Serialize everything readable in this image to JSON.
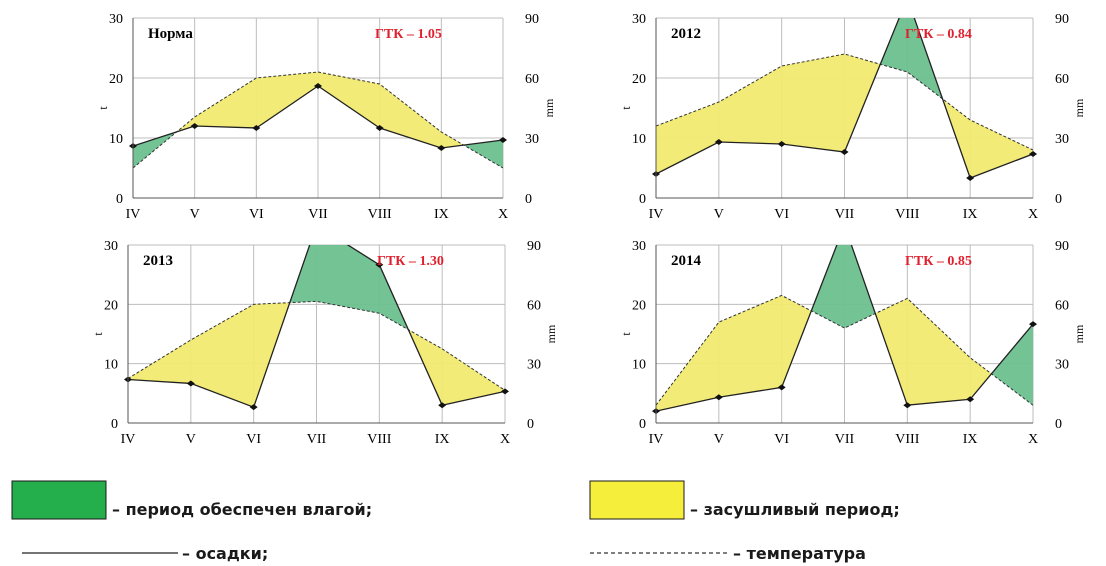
{
  "chart_data": [
    {
      "type": "area",
      "title": "Норма",
      "gtk_label": "ГТК – 1.05",
      "categories": [
        "IV",
        "V",
        "VI",
        "VII",
        "VIII",
        "IX",
        "X"
      ],
      "ylabel_left": "t",
      "ylabel_right": "mm",
      "ylim_left": [
        0,
        30
      ],
      "ylim_right": [
        0,
        90
      ],
      "yticks_left": [
        "0",
        "10",
        "20",
        "30"
      ],
      "yticks_right": [
        "0",
        "30",
        "60",
        "90"
      ],
      "series": [
        {
          "name": "осадки",
          "axis": "right",
          "values": [
            26,
            36,
            35,
            56,
            35,
            25,
            29
          ]
        },
        {
          "name": "температура",
          "axis": "left",
          "values": [
            5,
            13.5,
            20,
            21,
            19,
            11,
            5
          ]
        }
      ]
    },
    {
      "type": "area",
      "title": "2012",
      "gtk_label": "ГТК – 0.84",
      "categories": [
        "IV",
        "V",
        "VI",
        "VII",
        "VIII",
        "IX",
        "X"
      ],
      "ylabel_left": "t",
      "ylabel_right": "mm",
      "ylim_left": [
        0,
        30
      ],
      "ylim_right": [
        0,
        90
      ],
      "yticks_left": [
        "0",
        "10",
        "20",
        "30"
      ],
      "yticks_right": [
        "0",
        "30",
        "60",
        "90"
      ],
      "series": [
        {
          "name": "осадки",
          "axis": "right",
          "values": [
            12,
            28,
            27,
            23,
            100,
            10,
            22
          ]
        },
        {
          "name": "температура",
          "axis": "left",
          "values": [
            12,
            16,
            22,
            24,
            21,
            13,
            8
          ]
        }
      ]
    },
    {
      "type": "area",
      "title": "2013",
      "gtk_label": "ГТК – 1.30",
      "categories": [
        "IV",
        "V",
        "VI",
        "VII",
        "VIII",
        "IX",
        "X"
      ],
      "ylabel_left": "t",
      "ylabel_right": "mm",
      "ylim_left": [
        0,
        30
      ],
      "ylim_right": [
        0,
        90
      ],
      "yticks_left": [
        "0",
        "10",
        "20",
        "30"
      ],
      "yticks_right": [
        "0",
        "30",
        "60",
        "90"
      ],
      "series": [
        {
          "name": "осадки",
          "axis": "right",
          "values": [
            22,
            20,
            8,
            100,
            80,
            9,
            16
          ]
        },
        {
          "name": "температура",
          "axis": "left",
          "values": [
            7.5,
            14,
            20,
            20.5,
            18.5,
            12.5,
            5.5
          ]
        }
      ]
    },
    {
      "type": "area",
      "title": "2014",
      "gtk_label": "ГТК – 0.85",
      "categories": [
        "IV",
        "V",
        "VI",
        "VII",
        "VIII",
        "IX",
        "X"
      ],
      "ylabel_left": "t",
      "ylabel_right": "mm",
      "ylim_left": [
        0,
        30
      ],
      "ylim_right": [
        0,
        90
      ],
      "yticks_left": [
        "0",
        "10",
        "20",
        "30"
      ],
      "yticks_right": [
        "0",
        "30",
        "60",
        "90"
      ],
      "series": [
        {
          "name": "осадки",
          "axis": "right",
          "values": [
            6,
            13,
            18,
            100,
            9,
            12,
            50
          ]
        },
        {
          "name": "температура",
          "axis": "left",
          "values": [
            3,
            17,
            21.5,
            16,
            21,
            11,
            3
          ]
        }
      ]
    }
  ],
  "legend": {
    "wet_label": "– период обеспечен влагой;",
    "dry_label": "– засушливый период;",
    "precip_label": "– осадки;",
    "temp_label": "– температура"
  },
  "colors": {
    "wet": "#6cc08f",
    "dry": "#f2ea70",
    "wet_legend": "#25ae4c",
    "dry_legend": "#f5ee3a",
    "gtk": "#e0202e"
  }
}
